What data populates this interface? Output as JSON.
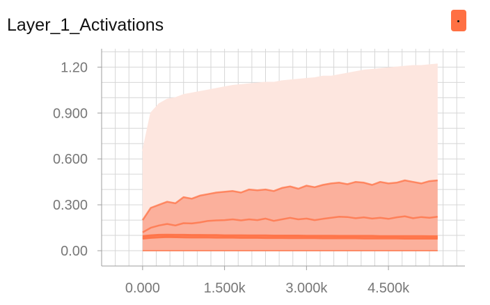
{
  "title": "Layer_1_Activations",
  "colors": {
    "accent": "#ff7043",
    "band_outer": "#fde6df",
    "band_mid": "#fbb09c",
    "band_inner": "#f79478",
    "grid": "#d6d6d6",
    "axis": "#9e9e9e"
  },
  "legend_icon": "color-swatch-button",
  "chart_data": {
    "type": "area",
    "title": "Layer_1_Activations",
    "xlabel": "",
    "ylabel": "",
    "x_ticks": [
      {
        "value": 0,
        "label": "0.000"
      },
      {
        "value": 1500,
        "label": "1.500k"
      },
      {
        "value": 3000,
        "label": "3.000k"
      },
      {
        "value": 4500,
        "label": "4.500k"
      }
    ],
    "y_ticks": [
      {
        "value": 0,
        "label": "0.00"
      },
      {
        "value": 0.3,
        "label": "0.300"
      },
      {
        "value": 0.6,
        "label": "0.600"
      },
      {
        "value": 0.9,
        "label": "0.900"
      },
      {
        "value": 1.2,
        "label": "1.20"
      }
    ],
    "xlim": [
      -750,
      5900
    ],
    "ylim": [
      -0.1,
      1.32
    ],
    "grid": true,
    "x": [
      0,
      150,
      300,
      450,
      600,
      750,
      900,
      1050,
      1200,
      1350,
      1500,
      1650,
      1800,
      1950,
      2100,
      2250,
      2400,
      2550,
      2700,
      2850,
      3000,
      3150,
      3300,
      3450,
      3600,
      3750,
      3900,
      4050,
      4200,
      4350,
      4500,
      4650,
      4800,
      4950,
      5100,
      5250,
      5400
    ],
    "series": [
      {
        "values": [
          0.0,
          0.0,
          0.0,
          0.0,
          0.0,
          0.0,
          0.0,
          0.0,
          0.0,
          0.0,
          0.0,
          0.0,
          0.0,
          0.0,
          0.0,
          0.0,
          0.0,
          0.0,
          0.0,
          0.0,
          0.0,
          0.0,
          0.0,
          0.0,
          0.0,
          0.0,
          0.0,
          0.0,
          0.0,
          0.0,
          0.0,
          0.0,
          0.0,
          0.0,
          0.0,
          0.0,
          0.0
        ]
      },
      {
        "values": [
          0.08,
          0.085,
          0.088,
          0.09,
          0.089,
          0.088,
          0.087,
          0.088,
          0.087,
          0.086,
          0.086,
          0.086,
          0.085,
          0.085,
          0.085,
          0.084,
          0.084,
          0.084,
          0.083,
          0.083,
          0.083,
          0.083,
          0.082,
          0.082,
          0.082,
          0.082,
          0.082,
          0.081,
          0.081,
          0.081,
          0.081,
          0.081,
          0.08,
          0.08,
          0.08,
          0.08,
          0.08
        ]
      },
      {
        "values": [
          0.095,
          0.1,
          0.103,
          0.104,
          0.103,
          0.103,
          0.102,
          0.102,
          0.101,
          0.101,
          0.1,
          0.1,
          0.1,
          0.099,
          0.099,
          0.099,
          0.098,
          0.098,
          0.098,
          0.098,
          0.097,
          0.097,
          0.097,
          0.097,
          0.096,
          0.096,
          0.096,
          0.096,
          0.096,
          0.095,
          0.095,
          0.095,
          0.095,
          0.095,
          0.095,
          0.094,
          0.094
        ]
      },
      {
        "values": [
          0.12,
          0.15,
          0.165,
          0.175,
          0.165,
          0.18,
          0.178,
          0.185,
          0.195,
          0.198,
          0.2,
          0.205,
          0.198,
          0.205,
          0.2,
          0.21,
          0.195,
          0.205,
          0.215,
          0.205,
          0.21,
          0.2,
          0.208,
          0.215,
          0.222,
          0.22,
          0.212,
          0.218,
          0.21,
          0.215,
          0.208,
          0.218,
          0.225,
          0.212,
          0.22,
          0.215,
          0.222
        ]
      },
      {
        "values": [
          0.2,
          0.28,
          0.3,
          0.32,
          0.31,
          0.35,
          0.34,
          0.36,
          0.37,
          0.38,
          0.385,
          0.39,
          0.38,
          0.4,
          0.395,
          0.4,
          0.39,
          0.41,
          0.42,
          0.405,
          0.425,
          0.415,
          0.43,
          0.44,
          0.445,
          0.435,
          0.45,
          0.445,
          0.43,
          0.45,
          0.44,
          0.445,
          0.46,
          0.45,
          0.44,
          0.455,
          0.46
        ]
      },
      {
        "values": [
          0.65,
          0.9,
          0.96,
          0.99,
          1.0,
          1.02,
          1.03,
          1.04,
          1.05,
          1.06,
          1.07,
          1.08,
          1.085,
          1.09,
          1.095,
          1.1,
          1.1,
          1.11,
          1.115,
          1.12,
          1.125,
          1.13,
          1.14,
          1.14,
          1.15,
          1.16,
          1.17,
          1.18,
          1.185,
          1.19,
          1.195,
          1.2,
          1.205,
          1.21,
          1.21,
          1.215,
          1.22
        ]
      }
    ]
  }
}
